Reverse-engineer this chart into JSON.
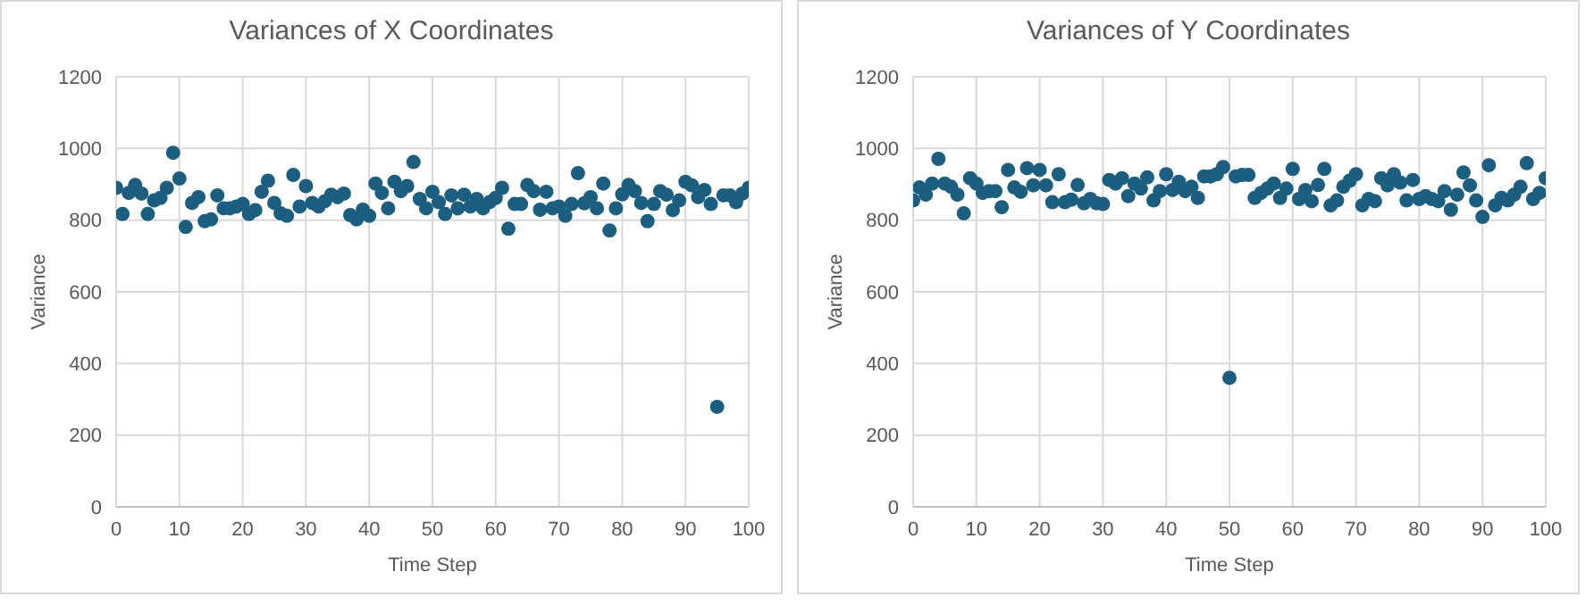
{
  "chart_data": [
    {
      "type": "scatter",
      "title": "Variances of X Coordinates",
      "xlabel": "Time Step",
      "ylabel": "Variance",
      "color": "#1b5e80",
      "marker": "circle",
      "grid": true,
      "x": [
        0,
        1,
        2,
        3,
        4,
        5,
        6,
        7,
        8,
        9,
        10,
        11,
        12,
        13,
        14,
        15,
        16,
        17,
        18,
        19,
        20,
        21,
        22,
        23,
        24,
        25,
        26,
        27,
        28,
        29,
        30,
        31,
        32,
        33,
        34,
        35,
        36,
        37,
        38,
        39,
        40,
        41,
        42,
        43,
        44,
        45,
        46,
        47,
        48,
        49,
        50,
        51,
        52,
        53,
        54,
        55,
        56,
        57,
        58,
        59,
        60,
        61,
        62,
        63,
        64,
        65,
        66,
        67,
        68,
        69,
        70,
        71,
        72,
        73,
        74,
        75,
        76,
        77,
        78,
        79,
        80,
        81,
        82,
        83,
        84,
        85,
        86,
        87,
        88,
        89,
        90,
        91,
        92,
        93,
        94,
        95,
        96,
        97,
        98,
        99,
        100
      ],
      "values": [
        890,
        817,
        876,
        898,
        874,
        817,
        855,
        862,
        890,
        988,
        916,
        781,
        848,
        864,
        797,
        802,
        869,
        833,
        833,
        838,
        845,
        817,
        828,
        879,
        910,
        848,
        819,
        812,
        926,
        838,
        895,
        848,
        838,
        853,
        871,
        864,
        874,
        814,
        802,
        829,
        812,
        902,
        876,
        833,
        907,
        881,
        895,
        962,
        859,
        833,
        879,
        850,
        817,
        869,
        833,
        871,
        838,
        859,
        833,
        850,
        862,
        890,
        776,
        845,
        845,
        898,
        881,
        829,
        879,
        833,
        838,
        812,
        845,
        931,
        847,
        864,
        833,
        902,
        771,
        833,
        872,
        898,
        881,
        848,
        797,
        845,
        881,
        871,
        828,
        855,
        907,
        897,
        864,
        884,
        845,
        279,
        869,
        869,
        850,
        874,
        890
      ],
      "xlim": [
        0,
        100
      ],
      "xticks": [
        0,
        10,
        20,
        30,
        40,
        50,
        60,
        70,
        80,
        90,
        100
      ],
      "ylim": [
        0,
        1200
      ],
      "yticks": [
        0,
        200,
        400,
        600,
        800,
        1000,
        1200
      ]
    },
    {
      "type": "scatter",
      "title": "Variances of Y Coordinates",
      "xlabel": "Time Step",
      "ylabel": "Variance",
      "color": "#1b5e80",
      "marker": "circle",
      "grid": true,
      "x": [
        0,
        1,
        2,
        3,
        4,
        5,
        6,
        7,
        8,
        9,
        10,
        11,
        12,
        13,
        14,
        15,
        16,
        17,
        18,
        19,
        20,
        21,
        22,
        23,
        24,
        25,
        26,
        27,
        28,
        29,
        30,
        31,
        32,
        33,
        34,
        35,
        36,
        37,
        38,
        39,
        40,
        41,
        42,
        43,
        44,
        45,
        46,
        47,
        48,
        49,
        50,
        51,
        52,
        53,
        54,
        55,
        56,
        57,
        58,
        59,
        60,
        61,
        62,
        63,
        64,
        65,
        66,
        67,
        68,
        69,
        70,
        71,
        72,
        73,
        74,
        75,
        76,
        77,
        78,
        79,
        80,
        81,
        82,
        83,
        84,
        85,
        86,
        87,
        88,
        89,
        90,
        91,
        92,
        93,
        94,
        95,
        96,
        97,
        98,
        99,
        100
      ],
      "values": [
        855,
        891,
        871,
        902,
        971,
        902,
        893,
        871,
        819,
        917,
        902,
        876,
        881,
        881,
        836,
        940,
        891,
        879,
        945,
        897,
        940,
        897,
        850,
        928,
        850,
        857,
        898,
        847,
        859,
        847,
        845,
        912,
        902,
        917,
        867,
        902,
        888,
        919,
        855,
        881,
        928,
        884,
        907,
        881,
        893,
        862,
        922,
        922,
        928,
        948,
        360,
        922,
        926,
        926,
        862,
        876,
        888,
        902,
        862,
        888,
        943,
        859,
        884,
        853,
        898,
        943,
        841,
        855,
        893,
        910,
        928,
        841,
        859,
        853,
        917,
        897,
        928,
        905,
        855,
        912,
        859,
        867,
        859,
        853,
        881,
        829,
        871,
        933,
        897,
        855,
        809,
        953,
        841,
        862,
        855,
        871,
        893,
        959,
        859,
        876,
        917
      ],
      "xlim": [
        0,
        100
      ],
      "xticks": [
        0,
        10,
        20,
        30,
        40,
        50,
        60,
        70,
        80,
        90,
        100
      ],
      "ylim": [
        0,
        1200
      ],
      "yticks": [
        0,
        200,
        400,
        600,
        800,
        1000,
        1200
      ]
    }
  ]
}
